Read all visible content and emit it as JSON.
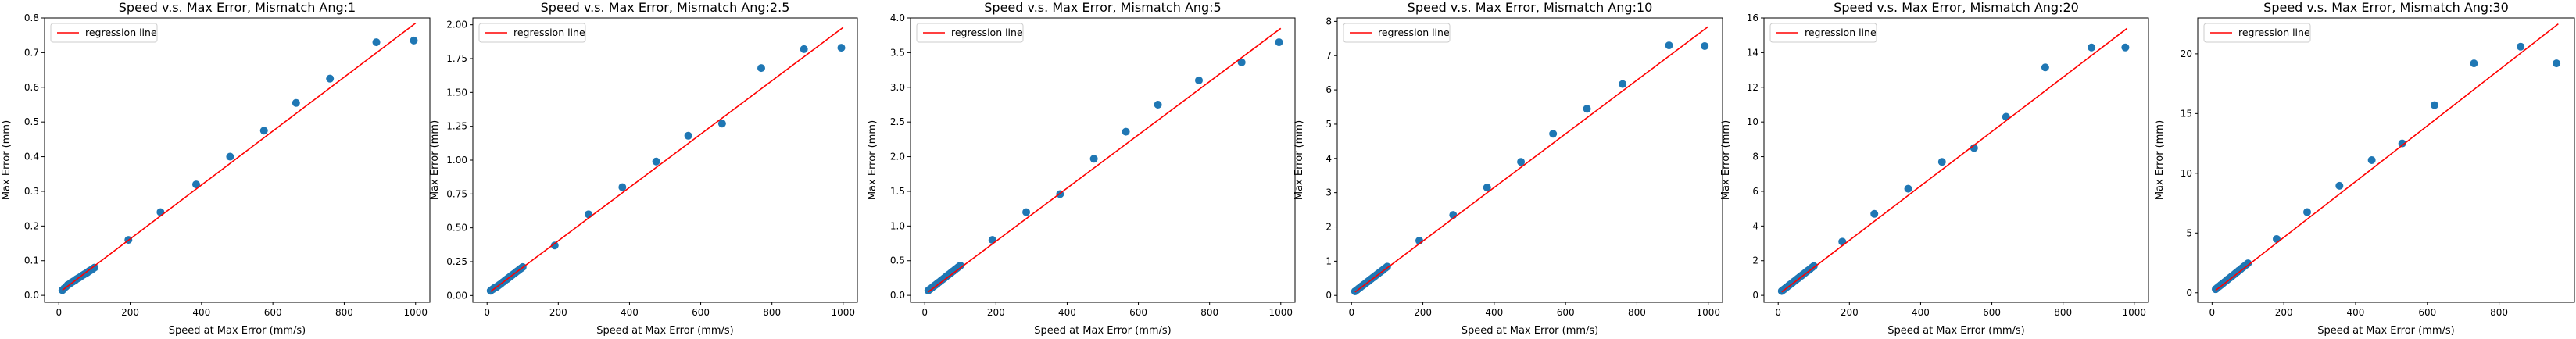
{
  "chart_data": [
    {
      "type": "scatter",
      "title": "Speed v.s. Max Error, Mismatch Ang:1",
      "xlabel": "Speed at Max Error (mm/s)",
      "ylabel": "Max Error (mm)",
      "xlim": [
        -40,
        1040
      ],
      "ylim": [
        -0.02,
        0.8
      ],
      "xticks": [
        0,
        200,
        400,
        600,
        800,
        1000
      ],
      "yticks": [
        0.0,
        0.1,
        0.2,
        0.3,
        0.4,
        0.5,
        0.6,
        0.7,
        0.8
      ],
      "ytick_decimals": 1,
      "grid": false,
      "legend": {
        "position": "top-left",
        "entries": [
          "regression line"
        ]
      },
      "regression_line": {
        "x": [
          10,
          1000
        ],
        "y": [
          0.015,
          0.785
        ]
      },
      "points": {
        "x": [
          10,
          15,
          20,
          25,
          30,
          35,
          40,
          45,
          50,
          55,
          60,
          65,
          70,
          75,
          80,
          85,
          90,
          95,
          100,
          195,
          285,
          385,
          480,
          575,
          665,
          760,
          890,
          995
        ],
        "y": [
          0.015,
          0.02,
          0.025,
          0.03,
          0.033,
          0.037,
          0.04,
          0.043,
          0.047,
          0.05,
          0.053,
          0.057,
          0.06,
          0.063,
          0.066,
          0.07,
          0.073,
          0.076,
          0.08,
          0.16,
          0.24,
          0.32,
          0.4,
          0.475,
          0.555,
          0.625,
          0.73,
          0.735
        ]
      }
    },
    {
      "type": "scatter",
      "title": "Speed v.s. Max Error, Mismatch Ang:2.5",
      "xlabel": "Speed at Max Error (mm/s)",
      "ylabel": "Max Error (mm)",
      "xlim": [
        -40,
        1040
      ],
      "ylim": [
        -0.05,
        2.05
      ],
      "xticks": [
        0,
        200,
        400,
        600,
        800,
        1000
      ],
      "yticks": [
        0.0,
        0.25,
        0.5,
        0.75,
        1.0,
        1.25,
        1.5,
        1.75,
        2.0
      ],
      "ytick_decimals": 2,
      "grid": false,
      "legend": {
        "position": "top-left",
        "entries": [
          "regression line"
        ]
      },
      "regression_line": {
        "x": [
          10,
          1000
        ],
        "y": [
          0.03,
          1.98
        ]
      },
      "points": {
        "x": [
          10,
          15,
          20,
          25,
          30,
          35,
          40,
          45,
          50,
          55,
          60,
          65,
          70,
          75,
          80,
          85,
          90,
          95,
          100,
          190,
          285,
          380,
          475,
          565,
          660,
          770,
          890,
          995
        ],
        "y": [
          0.035,
          0.045,
          0.055,
          0.06,
          0.07,
          0.08,
          0.09,
          0.1,
          0.11,
          0.12,
          0.13,
          0.14,
          0.15,
          0.16,
          0.17,
          0.18,
          0.19,
          0.2,
          0.21,
          0.37,
          0.6,
          0.8,
          0.99,
          1.18,
          1.27,
          1.68,
          1.82,
          1.83
        ]
      }
    },
    {
      "type": "scatter",
      "title": "Speed v.s. Max Error, Mismatch Ang:5",
      "xlabel": "Speed at Max Error (mm/s)",
      "ylabel": "Max Error (mm)",
      "xlim": [
        -40,
        1040
      ],
      "ylim": [
        -0.1,
        4.0
      ],
      "xticks": [
        0,
        200,
        400,
        600,
        800,
        1000
      ],
      "yticks": [
        0.0,
        0.5,
        1.0,
        1.5,
        2.0,
        2.5,
        3.0,
        3.5,
        4.0
      ],
      "ytick_decimals": 1,
      "grid": false,
      "legend": {
        "position": "top-left",
        "entries": [
          "regression line"
        ]
      },
      "regression_line": {
        "x": [
          10,
          1000
        ],
        "y": [
          0.05,
          3.85
        ]
      },
      "points": {
        "x": [
          10,
          15,
          20,
          25,
          30,
          35,
          40,
          45,
          50,
          55,
          60,
          65,
          70,
          75,
          80,
          85,
          90,
          95,
          100,
          190,
          285,
          380,
          475,
          565,
          655,
          770,
          890,
          995
        ],
        "y": [
          0.07,
          0.09,
          0.11,
          0.13,
          0.15,
          0.17,
          0.19,
          0.21,
          0.23,
          0.25,
          0.27,
          0.29,
          0.31,
          0.33,
          0.35,
          0.37,
          0.39,
          0.41,
          0.43,
          0.8,
          1.2,
          1.46,
          1.97,
          2.36,
          2.75,
          3.1,
          3.36,
          3.65
        ]
      }
    },
    {
      "type": "scatter",
      "title": "Speed v.s. Max Error, Mismatch Ang:10",
      "xlabel": "Speed at Max Error (mm/s)",
      "ylabel": "Max Error (mm)",
      "xlim": [
        -40,
        1040
      ],
      "ylim": [
        -0.2,
        8.1
      ],
      "xticks": [
        0,
        200,
        400,
        600,
        800,
        1000
      ],
      "yticks": [
        0,
        1,
        2,
        3,
        4,
        5,
        6,
        7,
        8
      ],
      "ytick_decimals": 0,
      "grid": false,
      "legend": {
        "position": "top-left",
        "entries": [
          "regression line"
        ]
      },
      "regression_line": {
        "x": [
          10,
          1000
        ],
        "y": [
          0.1,
          7.85
        ]
      },
      "points": {
        "x": [
          10,
          15,
          20,
          25,
          30,
          35,
          40,
          45,
          50,
          55,
          60,
          65,
          70,
          75,
          80,
          85,
          90,
          95,
          100,
          190,
          285,
          380,
          475,
          565,
          660,
          760,
          890,
          990
        ],
        "y": [
          0.12,
          0.16,
          0.2,
          0.24,
          0.28,
          0.32,
          0.36,
          0.4,
          0.44,
          0.48,
          0.52,
          0.56,
          0.6,
          0.64,
          0.68,
          0.72,
          0.76,
          0.8,
          0.84,
          1.6,
          2.35,
          3.15,
          3.9,
          4.72,
          5.45,
          6.17,
          7.3,
          7.28
        ]
      }
    },
    {
      "type": "scatter",
      "title": "Speed v.s. Max Error, Mismatch Ang:20",
      "xlabel": "Speed at Max Error (mm/s)",
      "ylabel": "Max Error (mm)",
      "xlim": [
        -40,
        1040
      ],
      "ylim": [
        -0.4,
        16.0
      ],
      "xticks": [
        0,
        200,
        400,
        600,
        800,
        1000
      ],
      "yticks": [
        0,
        2,
        4,
        6,
        8,
        10,
        12,
        14,
        16
      ],
      "ytick_decimals": 0,
      "grid": false,
      "legend": {
        "position": "top-left",
        "entries": [
          "regression line"
        ]
      },
      "regression_line": {
        "x": [
          10,
          980
        ],
        "y": [
          0.2,
          15.4
        ]
      },
      "points": {
        "x": [
          10,
          15,
          20,
          25,
          30,
          35,
          40,
          45,
          50,
          55,
          60,
          65,
          70,
          75,
          80,
          85,
          90,
          95,
          100,
          180,
          270,
          365,
          460,
          550,
          640,
          750,
          880,
          975
        ],
        "y": [
          0.25,
          0.33,
          0.41,
          0.49,
          0.57,
          0.65,
          0.73,
          0.81,
          0.89,
          0.97,
          1.05,
          1.13,
          1.21,
          1.29,
          1.37,
          1.45,
          1.53,
          1.61,
          1.69,
          3.1,
          4.7,
          6.15,
          7.7,
          8.5,
          10.3,
          13.15,
          14.3,
          14.3
        ]
      }
    },
    {
      "type": "scatter",
      "title": "Speed v.s. Max Error, Mismatch Ang:30",
      "xlabel": "Speed at Max Error (mm/s)",
      "ylabel": "Max Error (mm)",
      "xlim": [
        -40,
        1010
      ],
      "ylim": [
        -0.8,
        23.0
      ],
      "xticks": [
        0,
        200,
        400,
        600,
        800
      ],
      "yticks": [
        0,
        5,
        10,
        15,
        20
      ],
      "ytick_decimals": 0,
      "grid": false,
      "legend": {
        "position": "top-left",
        "entries": [
          "regression line"
        ]
      },
      "regression_line": {
        "x": [
          10,
          965
        ],
        "y": [
          0.2,
          22.5
        ]
      },
      "points": {
        "x": [
          10,
          15,
          20,
          25,
          30,
          35,
          40,
          45,
          50,
          55,
          60,
          65,
          70,
          75,
          80,
          85,
          90,
          95,
          100,
          180,
          265,
          355,
          445,
          530,
          620,
          730,
          860,
          960
        ],
        "y": [
          0.3,
          0.42,
          0.54,
          0.66,
          0.78,
          0.9,
          1.02,
          1.14,
          1.26,
          1.38,
          1.5,
          1.62,
          1.74,
          1.86,
          1.98,
          2.1,
          2.22,
          2.34,
          2.46,
          4.5,
          6.75,
          8.95,
          11.1,
          12.5,
          15.7,
          19.2,
          20.6,
          19.2
        ]
      }
    }
  ],
  "colors": {
    "point": "#1f77b4",
    "line": "#ff0000",
    "axis": "#000000",
    "legend_border": "#cccccc"
  }
}
